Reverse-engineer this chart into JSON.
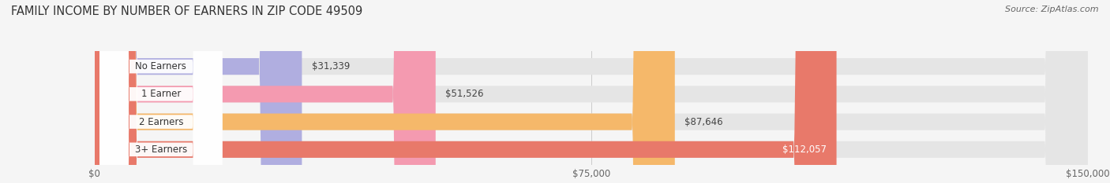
{
  "title": "FAMILY INCOME BY NUMBER OF EARNERS IN ZIP CODE 49509",
  "source": "Source: ZipAtlas.com",
  "categories": [
    "No Earners",
    "1 Earner",
    "2 Earners",
    "3+ Earners"
  ],
  "values": [
    31339,
    51526,
    87646,
    112057
  ],
  "bar_colors": [
    "#b0aee0",
    "#f49ab0",
    "#f5b86a",
    "#e8796a"
  ],
  "bar_bg_color": "#e5e5e5",
  "label_colors": [
    "#333333",
    "#333333",
    "#333333",
    "#ffffff"
  ],
  "value_labels": [
    "$31,339",
    "$51,526",
    "$87,646",
    "$112,057"
  ],
  "xmax": 150000,
  "xticks": [
    0,
    75000,
    150000
  ],
  "xticklabels": [
    "$0",
    "$75,000",
    "$150,000"
  ],
  "background_color": "#f5f5f5",
  "title_fontsize": 10.5,
  "source_fontsize": 8.0,
  "bar_label_fontsize": 8.5,
  "value_label_fontsize": 8.5
}
